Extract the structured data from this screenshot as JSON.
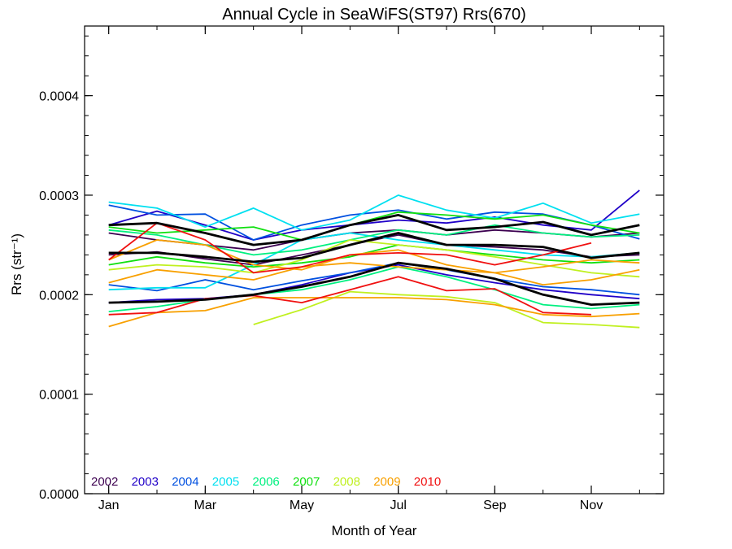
{
  "chart_data": {
    "type": "line",
    "title": "Annual Cycle in SeaWiFS(ST97) Rrs(670)",
    "xlabel": "Month of Year",
    "ylabel": "Rrs (str⁻¹)",
    "xlim": [
      0.5,
      12.5
    ],
    "ylim": [
      0.0,
      0.00047
    ],
    "x_ticks": [
      {
        "value": 1,
        "label": "Jan"
      },
      {
        "value": 3,
        "label": "Mar"
      },
      {
        "value": 5,
        "label": "May"
      },
      {
        "value": 7,
        "label": "Jul"
      },
      {
        "value": 9,
        "label": "Sep"
      },
      {
        "value": 11,
        "label": "Nov"
      }
    ],
    "y_ticks": [
      {
        "value": 0.0,
        "label": "0.0000"
      },
      {
        "value": 0.0001,
        "label": "0.0001"
      },
      {
        "value": 0.0002,
        "label": "0.0002"
      },
      {
        "value": 0.0003,
        "label": "0.0003"
      },
      {
        "value": 0.0004,
        "label": "0.0004"
      }
    ],
    "grid": false,
    "legend_position": "bottom-left",
    "x": [
      1,
      2,
      3,
      4,
      5,
      6,
      7,
      8,
      9,
      10,
      11,
      12
    ],
    "series": [
      {
        "name": "2002",
        "color": "#3c0050",
        "values": [
          0.00024,
          0.000243,
          0.000236,
          0.00023,
          0.00024,
          0.00025,
          0.00026,
          0.00025,
          0.000248,
          0.000245,
          0.000238,
          0.00024
        ]
      },
      {
        "name": "2002",
        "color": "#3c0050",
        "values": [
          0.000262,
          0.000255,
          0.00025,
          0.000245,
          0.000255,
          0.000262,
          0.000265,
          0.00026,
          0.000265,
          0.000262,
          0.000258,
          0.000262
        ]
      },
      {
        "name": "2003",
        "color": "#2000c8",
        "values": [
          0.00027,
          0.000284,
          0.00027,
          0.000255,
          0.000265,
          0.00027,
          0.000275,
          0.000272,
          0.000278,
          0.00027,
          0.000265,
          0.000305
        ]
      },
      {
        "name": "2003",
        "color": "#2000c8",
        "values": [
          0.000192,
          0.000195,
          0.000196,
          0.0002,
          0.00021,
          0.000222,
          0.00023,
          0.00022,
          0.000212,
          0.000205,
          0.0002,
          0.000196
        ]
      },
      {
        "name": "2004",
        "color": "#0050e0",
        "values": [
          0.00029,
          0.00028,
          0.000281,
          0.000255,
          0.00027,
          0.00028,
          0.000285,
          0.000276,
          0.000283,
          0.000281,
          0.00027,
          0.000256
        ]
      },
      {
        "name": "2004",
        "color": "#0050e0",
        "values": [
          0.00021,
          0.000204,
          0.000215,
          0.000205,
          0.000214,
          0.000222,
          0.000232,
          0.000225,
          0.000216,
          0.000208,
          0.000205,
          0.0002
        ]
      },
      {
        "name": "2005",
        "color": "#00e0f0",
        "values": [
          0.000293,
          0.000287,
          0.000268,
          0.000287,
          0.000265,
          0.000275,
          0.0003,
          0.000285,
          0.000277,
          0.000292,
          0.000272,
          0.000281
        ]
      },
      {
        "name": "2005",
        "color": "#00e0f0",
        "values": [
          0.000205,
          0.000207,
          0.000207,
          0.00023,
          0.000255,
          0.000262,
          0.000255,
          0.00025,
          0.000245,
          0.00024,
          0.000238,
          0.000242
        ]
      },
      {
        "name": "2006",
        "color": "#00f080",
        "values": [
          0.000265,
          0.00026,
          0.00025,
          0.00024,
          0.000245,
          0.000255,
          0.000265,
          0.00026,
          0.00027,
          0.000262,
          0.000258,
          0.00026
        ]
      },
      {
        "name": "2006",
        "color": "#00f080",
        "values": [
          0.000183,
          0.000188,
          0.000195,
          0.0002,
          0.000205,
          0.000215,
          0.000228,
          0.000218,
          0.000205,
          0.00019,
          0.000186,
          0.00019
        ]
      },
      {
        "name": "2007",
        "color": "#10e010",
        "values": [
          0.000268,
          0.000262,
          0.000265,
          0.000268,
          0.000255,
          0.00027,
          0.000283,
          0.00028,
          0.000276,
          0.00028,
          0.00027,
          0.000262
        ]
      },
      {
        "name": "2007",
        "color": "#10e010",
        "values": [
          0.00023,
          0.000238,
          0.000232,
          0.000228,
          0.000232,
          0.000238,
          0.00025,
          0.000245,
          0.00024,
          0.000235,
          0.000232,
          0.000235
        ]
      },
      {
        "name": "2008",
        "color": "#c0f020",
        "values": [
          null,
          null,
          null,
          0.00017,
          0.000185,
          0.000203,
          0.0002,
          0.000198,
          0.000192,
          0.000172,
          0.00017,
          0.000167
        ]
      },
      {
        "name": "2008",
        "color": "#c0f020",
        "values": [
          0.000225,
          0.00023,
          0.000228,
          0.000222,
          0.000235,
          0.000255,
          0.00025,
          0.000245,
          0.000238,
          0.00023,
          0.000222,
          0.000218
        ]
      },
      {
        "name": "2009",
        "color": "#f8a000",
        "values": [
          0.000168,
          0.000182,
          0.000184,
          0.000197,
          0.000197,
          0.000197,
          0.000197,
          0.000195,
          0.00019,
          0.00018,
          0.000178,
          0.000181
        ]
      },
      {
        "name": "2009",
        "color": "#f8a000",
        "values": [
          0.000212,
          0.000225,
          0.00022,
          0.000215,
          0.000228,
          0.000232,
          0.000228,
          0.000225,
          0.000222,
          0.000228,
          0.000235,
          0.000232
        ]
      },
      {
        "name": "2009",
        "color": "#f8a000",
        "values": [
          0.000235,
          0.000255,
          0.00025,
          0.00023,
          0.000225,
          0.00024,
          0.000245,
          0.00023,
          0.000222,
          0.00021,
          0.000215,
          0.000225
        ]
      },
      {
        "name": "2010",
        "color": "#f01010",
        "values": [
          0.00018,
          0.000182,
          0.000196,
          0.000199,
          0.000192,
          0.000205,
          0.000218,
          0.000204,
          0.000206,
          0.000182,
          0.00018,
          null
        ]
      },
      {
        "name": "2010",
        "color": "#f01010",
        "values": [
          0.000235,
          0.000272,
          0.000255,
          0.000222,
          0.000228,
          0.00024,
          0.000242,
          0.00024,
          0.00023,
          0.00024,
          0.000252,
          null
        ]
      },
      {
        "name": "",
        "color": "#000000",
        "bold": true,
        "values": [
          0.00027,
          0.000272,
          0.000262,
          0.00025,
          0.000255,
          0.00027,
          0.00028,
          0.000265,
          0.000268,
          0.000273,
          0.00026,
          0.00027
        ]
      },
      {
        "name": "",
        "color": "#000000",
        "bold": true,
        "values": [
          0.000242,
          0.000242,
          0.000238,
          0.000233,
          0.000237,
          0.00025,
          0.000262,
          0.00025,
          0.00025,
          0.000248,
          0.000237,
          0.000242
        ]
      },
      {
        "name": "",
        "color": "#000000",
        "bold": true,
        "values": [
          0.000192,
          0.000193,
          0.000195,
          0.0002,
          0.000208,
          0.000218,
          0.000232,
          0.000226,
          0.000216,
          0.0002,
          0.00019,
          0.000192
        ]
      }
    ]
  }
}
